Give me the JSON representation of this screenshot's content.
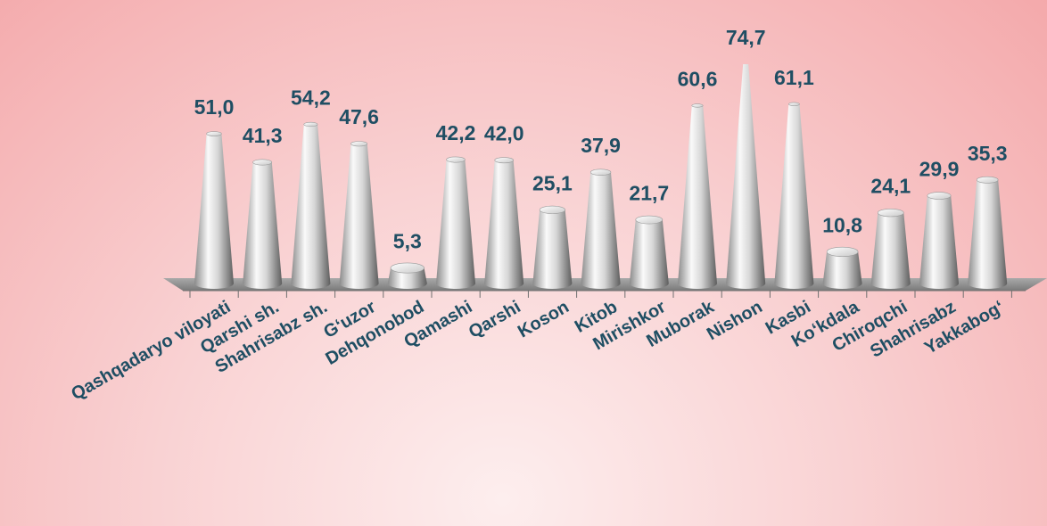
{
  "chart_data": {
    "type": "bar",
    "bar_shape": "cone",
    "categories": [
      "Qashqadaryo viloyati",
      "Qarshi sh.",
      "Shahrisabz sh.",
      "G‘uzor",
      "Dehqonobod",
      "Qamashi",
      "Qarshi",
      "Koson",
      "Kitob",
      "Mirishkor",
      "Muborak",
      "Nishon",
      "Kasbi",
      "Ko‘kdala",
      "Chiroqchi",
      "Shahrisabz",
      "Yakkabog‘"
    ],
    "values": [
      51.0,
      41.3,
      54.2,
      47.6,
      5.3,
      42.2,
      42.0,
      25.1,
      37.9,
      21.7,
      60.6,
      74.7,
      61.1,
      10.8,
      24.1,
      29.9,
      35.3
    ],
    "value_labels": [
      "51,0",
      "41,3",
      "54,2",
      "47,6",
      "5,3",
      "42,2",
      "42,0",
      "25,1",
      "37,9",
      "21,7",
      "60,6",
      "74,7",
      "61,1",
      "10,8",
      "24,1",
      "29,9",
      "35,3"
    ],
    "title": "",
    "xlabel": "",
    "ylabel": "",
    "ylim": [
      0,
      80
    ],
    "grid": false,
    "legend": "none",
    "colors": {
      "label": "#1f4e63",
      "floor": "#8f8f8f"
    }
  }
}
